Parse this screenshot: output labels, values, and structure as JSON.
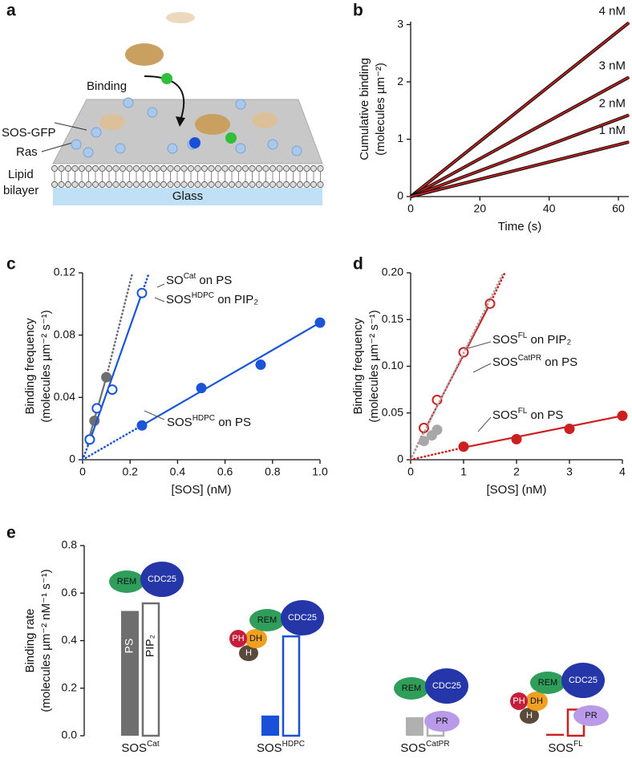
{
  "panel_a": {
    "label": "a",
    "binding": "Binding",
    "sos_gfp": "SOS-GFP",
    "ras": "Ras",
    "lipid": "Lipid",
    "bilayer": "bilayer",
    "glass": "Glass"
  },
  "chart_data": [
    {
      "type": "line",
      "panel_label": "b",
      "xlabel": "Time (s)",
      "ylabel": [
        "Cumulative binding",
        "(molecules µm⁻²)"
      ],
      "xlim": [
        0,
        63
      ],
      "xticks": [
        0,
        20,
        40,
        60
      ],
      "ylim": [
        0,
        3.05
      ],
      "yticks": [
        0,
        1,
        2,
        3
      ],
      "series": [
        {
          "name": "4 nM",
          "color": "#cc1f1f",
          "x": [
            0,
            63
          ],
          "values": [
            0,
            3.03
          ]
        },
        {
          "name": "3 nM",
          "color": "#cc1f1f",
          "x": [
            0,
            63
          ],
          "values": [
            0,
            2.08
          ]
        },
        {
          "name": "2 nM",
          "color": "#cc1f1f",
          "x": [
            0,
            63
          ],
          "values": [
            0,
            1.42
          ]
        },
        {
          "name": "1 nM",
          "color": "#cc1f1f",
          "x": [
            0,
            63
          ],
          "values": [
            0,
            0.95
          ]
        }
      ]
    },
    {
      "type": "scatter",
      "panel_label": "c",
      "xlabel": "[SOS] (nM)",
      "ylabel": [
        "Binding frequency",
        "(molecules µm⁻² s⁻¹)"
      ],
      "xlim": [
        0,
        1
      ],
      "xticks": [
        0,
        0.2,
        0.4,
        0.6,
        0.8,
        {
          "value": 1,
          "label": "1.0"
        }
      ],
      "ylim": [
        0,
        0.12
      ],
      "yticks": [
        0,
        0.04,
        0.08,
        0.12
      ],
      "series": [
        {
          "name_parts": [
            "SO",
            "Cat",
            " on PS"
          ],
          "color": "#6e6e6e",
          "filled": true,
          "x": [
            0.03,
            0.05,
            0.1
          ],
          "values": [
            0.013,
            0.025,
            0.053
          ],
          "fit": {
            "x": [
              0.02,
              0.1
            ],
            "values": [
              0.01,
              0.053
            ]
          },
          "dotted": [
            {
              "x": [
                0.1,
                0.21
              ],
              "values": [
                0.053,
                0.12
              ]
            }
          ]
        },
        {
          "name_parts": [
            "SOS",
            "HDPC",
            " on PIP₂"
          ],
          "color": "#1a55d8",
          "filled": false,
          "x": [
            0.03,
            0.06,
            0.125,
            0.25
          ],
          "values": [
            0.013,
            0.033,
            0.045,
            0.107
          ],
          "fit": {
            "x": [
              0.025,
              0.25
            ],
            "values": [
              0.01,
              0.107
            ]
          },
          "dotted": [
            {
              "x": [
                0,
                0.025
              ],
              "values": [
                0,
                0.01
              ]
            },
            {
              "x": [
                0.25,
                0.28
              ],
              "values": [
                0.107,
                0.12
              ]
            }
          ]
        },
        {
          "name_parts": [
            "SOS",
            "HDPC",
            " on PS"
          ],
          "color": "#1a55d8",
          "filled": true,
          "x": [
            0.25,
            0.5,
            0.75,
            1
          ],
          "values": [
            0.022,
            0.046,
            0.061,
            0.088
          ],
          "fit": {
            "x": [
              0.25,
              1
            ],
            "values": [
              0.022,
              0.088
            ]
          },
          "dotted": [
            {
              "x": [
                0,
                0.25
              ],
              "values": [
                0,
                0.022
              ]
            }
          ]
        }
      ]
    },
    {
      "type": "scatter",
      "panel_label": "d",
      "xlabel": "[SOS] (nM)",
      "ylabel": [
        "Binding frequency",
        "(molecules µm⁻² s⁻¹)"
      ],
      "xlim": [
        0,
        4
      ],
      "xticks": [
        0,
        1,
        2,
        3,
        4
      ],
      "ylim": [
        0,
        0.2
      ],
      "yticks": [
        0,
        0.05,
        {
          "value": 0.1,
          "label": "0.10"
        },
        0.15,
        {
          "value": 0.2,
          "label": "0.20"
        }
      ],
      "series": [
        {
          "name_parts": [
            "SOS",
            "FL",
            " on PIP₂"
          ],
          "color": "#cc2020",
          "filled": false,
          "x": [
            0.25,
            0.5,
            1,
            1.5
          ],
          "values": [
            0.034,
            0.064,
            0.115,
            0.167
          ],
          "fit": {
            "x": [
              0.25,
              1.5
            ],
            "values": [
              0.03,
              0.167
            ]
          },
          "dotted": [
            {
              "x": [
                0,
                0.25
              ],
              "values": [
                0,
                0.03
              ]
            },
            {
              "x": [
                1.5,
                1.78
              ],
              "values": [
                0.167,
                0.2
              ]
            }
          ]
        },
        {
          "name_parts": [
            "SOS",
            "CatPR",
            " on PS"
          ],
          "color": "#a8a8a8",
          "filled": true,
          "x": [
            0.25,
            0.4,
            0.5
          ],
          "values": [
            0.02,
            0.026,
            0.032
          ],
          "dotted": [
            {
              "x": [
                0,
                1.75
              ],
              "values": [
                0,
                0.2
              ]
            }
          ]
        },
        {
          "name_parts": [
            "SOS",
            "FL",
            " on PS"
          ],
          "color": "#cc2020",
          "filled": true,
          "x": [
            1,
            2,
            3,
            4
          ],
          "values": [
            0.014,
            0.022,
            0.033,
            0.047
          ],
          "fit": {
            "x": [
              1,
              4
            ],
            "values": [
              0.013,
              0.047
            ]
          },
          "dotted": [
            {
              "x": [
                0,
                1
              ],
              "values": [
                0,
                0.013
              ]
            }
          ]
        }
      ]
    },
    {
      "type": "bar",
      "panel_label": "e",
      "ylabel": [
        "Binding rate",
        "(molecules µm⁻² nM⁻¹ s⁻¹)"
      ],
      "ylim": [
        0,
        0.8
      ],
      "yticks": [
        {
          "value": 0,
          "label": "0.0"
        },
        0.2,
        0.4,
        0.6,
        0.8
      ],
      "categories": [
        [
          "SOS",
          "Cat"
        ],
        [
          "SOS",
          "HDPC"
        ],
        [
          "SOS",
          "CatPR"
        ],
        [
          "SOS",
          "FL"
        ]
      ],
      "colors": [
        "#6e6e6e",
        "#1a4fd8",
        "#b0b0b0",
        "#cc2020"
      ],
      "series": [
        {
          "name": "PS",
          "filled": true,
          "values": [
            0.525,
            0.085,
            0.078,
            0.008
          ]
        },
        {
          "name": "PIP₂",
          "filled": false,
          "values": [
            0.557,
            0.418,
            0.078,
            0.11
          ]
        }
      ],
      "domains": [
        [
          "REM",
          "CDC25"
        ],
        [
          "PH",
          "DH",
          "H",
          "REM",
          "CDC25"
        ],
        [
          "REM",
          "CDC25",
          "PR"
        ],
        [
          "PH",
          "DH",
          "H",
          "REM",
          "CDC25",
          "PR"
        ]
      ]
    }
  ]
}
